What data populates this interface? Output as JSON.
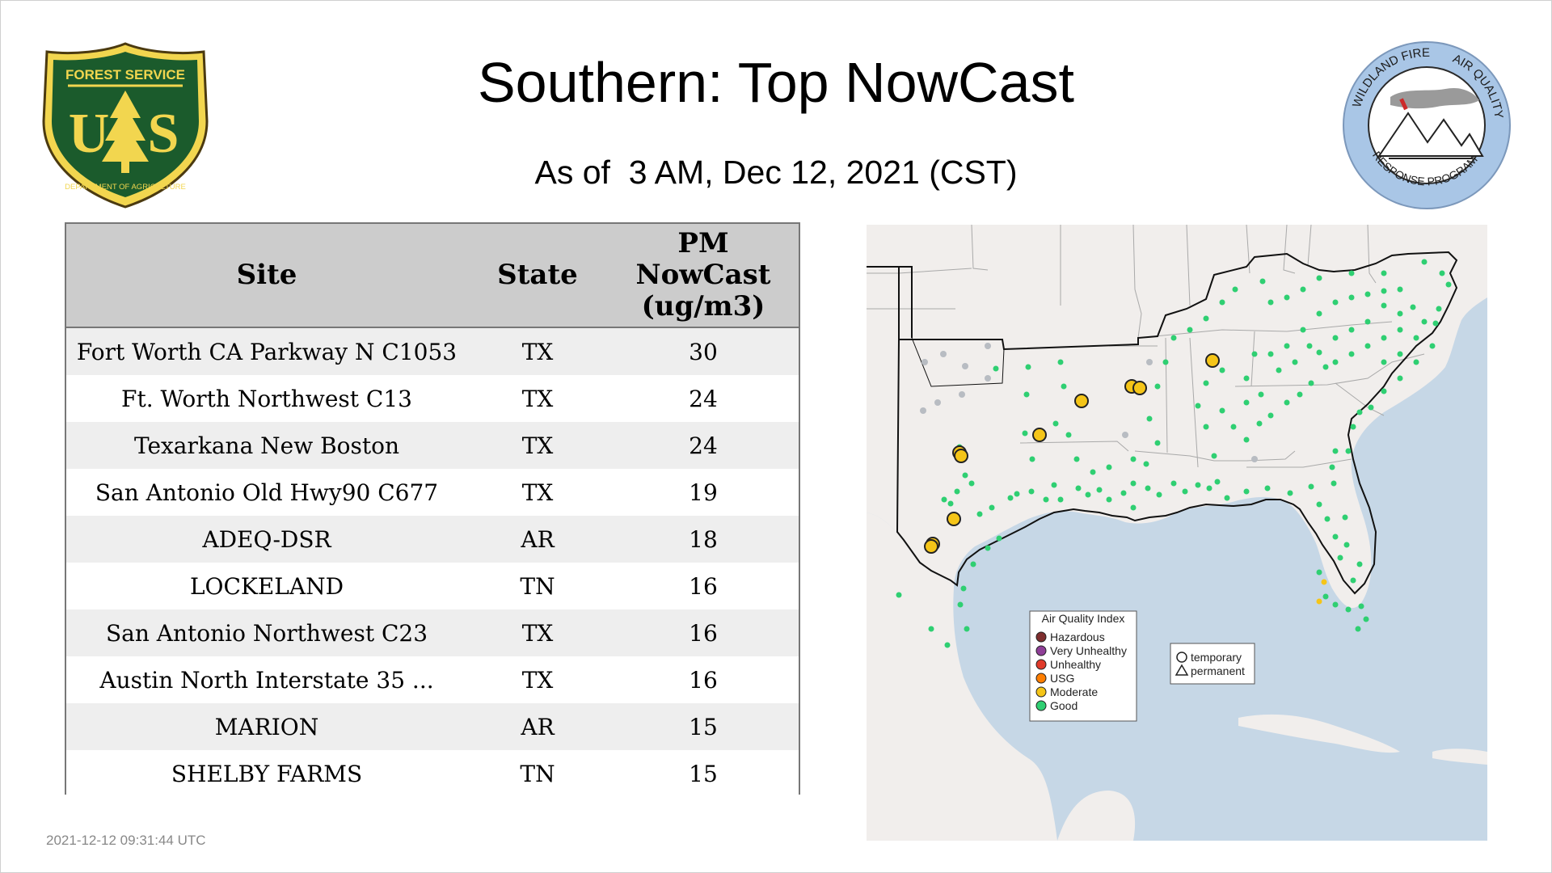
{
  "header": {
    "title": "Southern: Top NowCast",
    "subtitle": "As of  3 AM, Dec 12, 2021 (CST)"
  },
  "logos": {
    "left_text": [
      "FOREST SERVICE",
      "U",
      "S",
      "DEPARTMENT OF AGRICULTURE"
    ],
    "right_text": [
      "WILDLAND FIRE",
      "AIR QUALITY",
      "RESPONSE PROGRAM"
    ]
  },
  "table": {
    "headers": {
      "site": "Site",
      "state": "State",
      "pm_line1": "PM",
      "pm_line2": "NowCast",
      "pm_line3": "(ug/m3)"
    },
    "rows": [
      {
        "site": "Fort Worth CA Parkway N C1053",
        "state": "TX",
        "value": "30"
      },
      {
        "site": "Ft. Worth Northwest C13",
        "state": "TX",
        "value": "24"
      },
      {
        "site": "Texarkana New Boston",
        "state": "TX",
        "value": "24"
      },
      {
        "site": "San Antonio Old Hwy90 C677",
        "state": "TX",
        "value": "19"
      },
      {
        "site": "ADEQ-DSR",
        "state": "AR",
        "value": "18"
      },
      {
        "site": "LOCKELAND",
        "state": "TN",
        "value": "16"
      },
      {
        "site": "San Antonio Northwest C23",
        "state": "TX",
        "value": "16"
      },
      {
        "site": "Austin North Interstate 35 ...",
        "state": "TX",
        "value": "16"
      },
      {
        "site": "MARION",
        "state": "AR",
        "value": "15"
      },
      {
        "site": "SHELBY FARMS",
        "state": "TN",
        "value": "15"
      }
    ]
  },
  "timestamp": "2021-12-12 09:31:44 UTC",
  "map": {
    "legend": {
      "title": "Air Quality Index",
      "items": [
        {
          "label": "Hazardous",
          "color": "#7e2e2e"
        },
        {
          "label": "Very Unhealthy",
          "color": "#8f3f97"
        },
        {
          "label": "Unhealthy",
          "color": "#e03a2a"
        },
        {
          "label": "USG",
          "color": "#ff7e00"
        },
        {
          "label": "Moderate",
          "color": "#f5c518"
        },
        {
          "label": "Good",
          "color": "#2ecc71"
        }
      ]
    },
    "shape_legend": {
      "temporary": "temporary",
      "permanent": "permanent"
    },
    "colors": {
      "land": "#f1eeec",
      "water": "#c6d7e6",
      "good": "#2fcf72",
      "moderate": "#f5c518",
      "no_data": "#b8bcc2"
    }
  }
}
